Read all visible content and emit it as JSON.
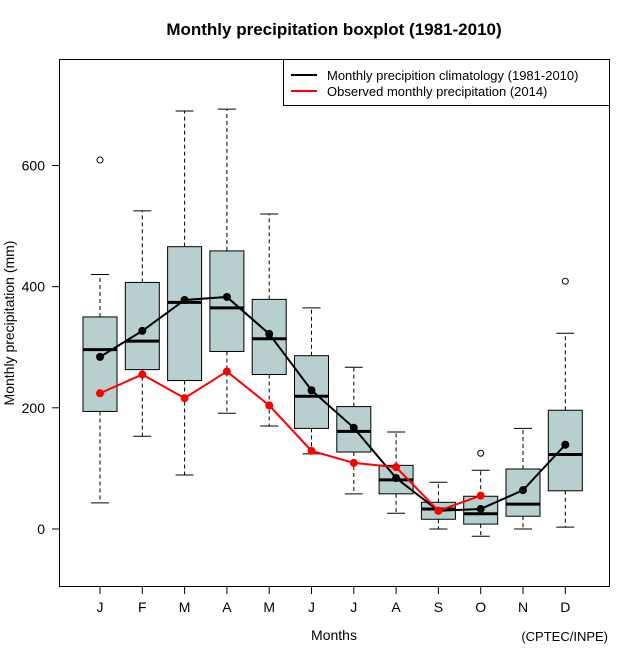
{
  "chart_data": {
    "type": "boxplot",
    "title": "Monthly precipitation boxplot (1981-2010)",
    "xlabel": "Months",
    "ylabel": "Monthly precipitation (mm)",
    "ylim": [
      -95,
      775
    ],
    "yticks": [
      0,
      200,
      400,
      600
    ],
    "categories": [
      "J",
      "F",
      "M",
      "A",
      "M",
      "J",
      "J",
      "A",
      "S",
      "O",
      "N",
      "D"
    ],
    "grid": false,
    "legend_position": "top-right",
    "box_color": "#b7cfcf",
    "boxes": [
      {
        "whisker_low": 43,
        "q1": 194,
        "median": 296,
        "q3": 350,
        "whisker_high": 420,
        "outliers": [
          609
        ]
      },
      {
        "whisker_low": 153,
        "q1": 263,
        "median": 310,
        "q3": 407,
        "whisker_high": 525,
        "outliers": []
      },
      {
        "whisker_low": 89,
        "q1": 245,
        "median": 374,
        "q3": 466,
        "whisker_high": 690,
        "outliers": []
      },
      {
        "whisker_low": 191,
        "q1": 293,
        "median": 365,
        "q3": 459,
        "whisker_high": 693,
        "outliers": []
      },
      {
        "whisker_low": 170,
        "q1": 255,
        "median": 314,
        "q3": 379,
        "whisker_high": 520,
        "outliers": []
      },
      {
        "whisker_low": 124,
        "q1": 166,
        "median": 219,
        "q3": 286,
        "whisker_high": 365,
        "outliers": []
      },
      {
        "whisker_low": 58,
        "q1": 127,
        "median": 161,
        "q3": 202,
        "whisker_high": 267,
        "outliers": []
      },
      {
        "whisker_low": 26,
        "q1": 58,
        "median": 81,
        "q3": 105,
        "whisker_high": 160,
        "outliers": []
      },
      {
        "whisker_low": 0,
        "q1": 16,
        "median": 33,
        "q3": 44,
        "whisker_high": 77,
        "outliers": []
      },
      {
        "whisker_low": -12,
        "q1": 8,
        "median": 25,
        "q3": 54,
        "whisker_high": 97,
        "outliers": [
          125
        ]
      },
      {
        "whisker_low": 0,
        "q1": 21,
        "median": 41,
        "q3": 99,
        "whisker_high": 166,
        "outliers": []
      },
      {
        "whisker_low": 3,
        "q1": 63,
        "median": 123,
        "q3": 196,
        "whisker_high": 323,
        "outliers": [
          409
        ]
      }
    ],
    "series": [
      {
        "name": "Monthly precipition climatology (1981-2010)",
        "color": "#000000",
        "values": [
          284,
          327,
          378,
          383,
          322,
          229,
          167,
          84,
          30,
          33,
          64,
          139
        ]
      },
      {
        "name": "Observed monthly precipitation (2014)",
        "color": "#ff0000",
        "values": [
          224,
          255,
          216,
          260,
          204,
          129,
          109,
          102,
          30,
          55,
          null,
          null
        ]
      }
    ],
    "annotation": "(CPTEC/INPE)"
  }
}
